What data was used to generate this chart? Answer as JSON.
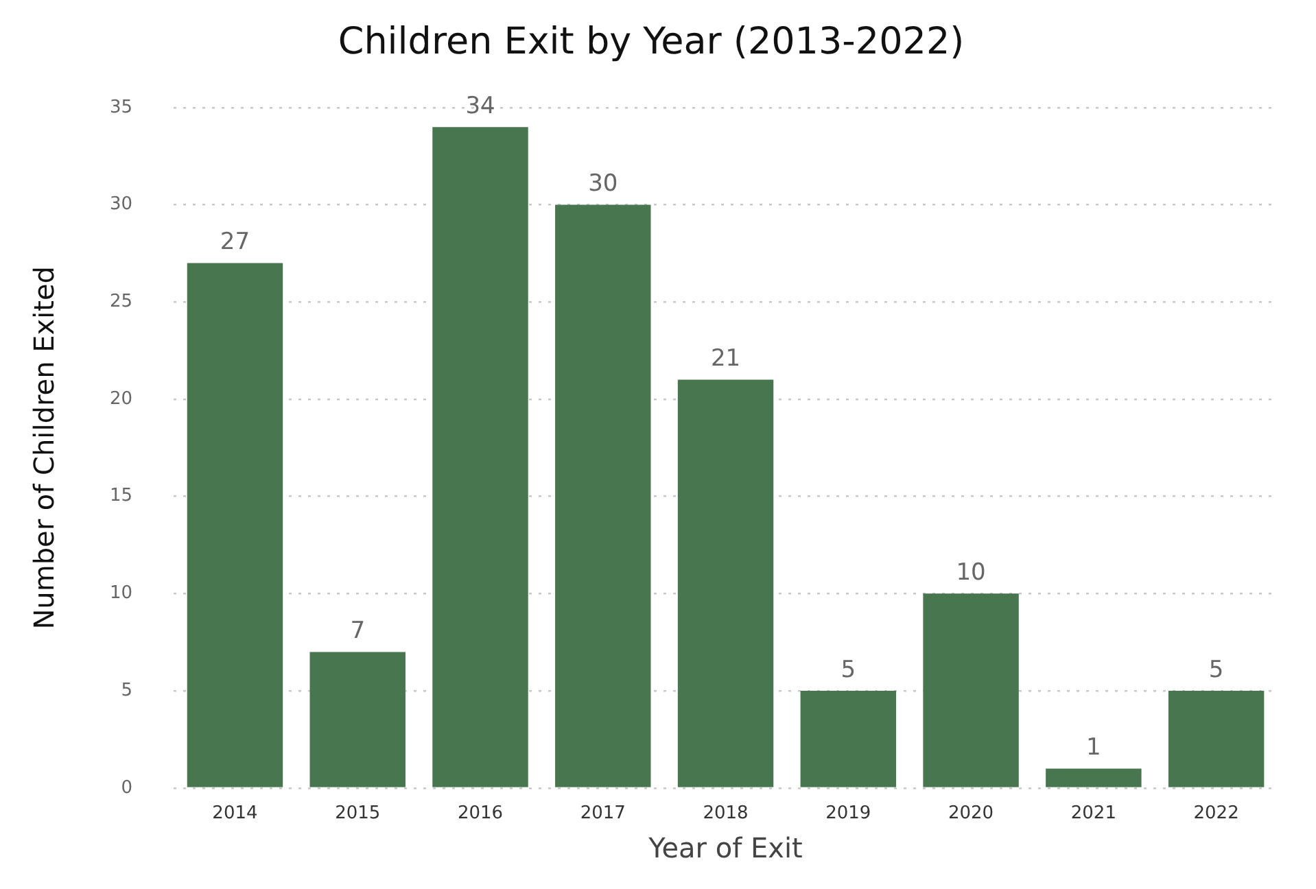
{
  "chart_data": {
    "type": "bar",
    "title": "Children Exit by Year (2013-2022)",
    "xlabel": "Year of Exit",
    "ylabel": "Number of Children Exited",
    "categories": [
      "2014",
      "2015",
      "2016",
      "2017",
      "2018",
      "2019",
      "2020",
      "2021",
      "2022"
    ],
    "values": [
      27,
      7,
      34,
      30,
      21,
      5,
      10,
      1,
      5
    ],
    "color": "#48764f",
    "ylim": [
      0,
      35
    ],
    "yticks": [
      0,
      5,
      10,
      15,
      20,
      25,
      30,
      35
    ],
    "grid": "y",
    "data_labels": true
  }
}
